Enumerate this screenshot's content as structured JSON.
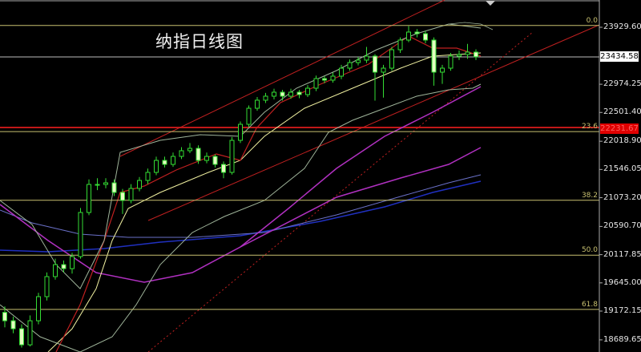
{
  "title": "纳指日线图",
  "chart_data": {
    "type": "candlestick",
    "title": "纳指日线图",
    "ylim": [
      18600,
      24350
    ],
    "y_ticks": [
      "23929.60",
      "22974.25",
      "22501.40",
      "22018.90",
      "21546.05",
      "21073.20",
      "20590.70",
      "20117.85",
      "19645.00",
      "19172.15",
      "18689.65"
    ],
    "current_price": "23434.58",
    "marked_price": "22231.67",
    "fib_levels": [
      {
        "label": "0.0",
        "price": 23960
      },
      {
        "label": "23.6",
        "price": 22180
      },
      {
        "label": "38.2",
        "price": 21030
      },
      {
        "label": "50.0",
        "price": 20110
      },
      {
        "label": "61.8",
        "price": 19200
      }
    ],
    "candles": [
      [
        19150,
        19250,
        18900,
        19010
      ],
      [
        19010,
        19080,
        18800,
        18876
      ],
      [
        18876,
        18950,
        18560,
        18607
      ],
      [
        18607,
        19100,
        18580,
        19010
      ],
      [
        19010,
        19480,
        18950,
        19414
      ],
      [
        19414,
        19820,
        19350,
        19750
      ],
      [
        19750,
        20050,
        19700,
        19951
      ],
      [
        19951,
        20020,
        19820,
        19884
      ],
      [
        19884,
        20150,
        19800,
        20086
      ],
      [
        20086,
        20900,
        20050,
        20825
      ],
      [
        20825,
        21380,
        20780,
        21295
      ],
      [
        21295,
        21400,
        21200,
        21295
      ],
      [
        21295,
        21400,
        21230,
        21322
      ],
      [
        21322,
        21380,
        21100,
        21161
      ],
      [
        21161,
        21220,
        20800,
        21027
      ],
      [
        21027,
        21300,
        20980,
        21228
      ],
      [
        21228,
        21420,
        21180,
        21362
      ],
      [
        21362,
        21560,
        21300,
        21497
      ],
      [
        21497,
        21760,
        21450,
        21698
      ],
      [
        21698,
        21760,
        21580,
        21631
      ],
      [
        21631,
        21830,
        21590,
        21765
      ],
      [
        21765,
        21920,
        21720,
        21860
      ],
      [
        21860,
        21990,
        21820,
        21900
      ],
      [
        21900,
        21950,
        21640,
        21698
      ],
      [
        21698,
        21830,
        21650,
        21765
      ],
      [
        21765,
        21800,
        21580,
        21631
      ],
      [
        21631,
        21680,
        21400,
        21497
      ],
      [
        21497,
        22090,
        21460,
        22034
      ],
      [
        22034,
        22350,
        21990,
        22303
      ],
      [
        22303,
        22620,
        22260,
        22572
      ],
      [
        22572,
        22760,
        22530,
        22707
      ],
      [
        22707,
        22830,
        22660,
        22774
      ],
      [
        22774,
        22900,
        22720,
        22841
      ],
      [
        22841,
        22880,
        22700,
        22774
      ],
      [
        22774,
        22900,
        22730,
        22841
      ],
      [
        22841,
        22880,
        22740,
        22801
      ],
      [
        22801,
        22960,
        22760,
        22908
      ],
      [
        22908,
        23120,
        22860,
        23069
      ],
      [
        23069,
        23110,
        22990,
        23043
      ],
      [
        23043,
        23170,
        23000,
        23110
      ],
      [
        23110,
        23300,
        23060,
        23244
      ],
      [
        23244,
        23390,
        23200,
        23338
      ],
      [
        23338,
        23430,
        23290,
        23379
      ],
      [
        23379,
        23600,
        23330,
        23446
      ],
      [
        23446,
        23480,
        22700,
        23177
      ],
      [
        23177,
        23300,
        22750,
        23244
      ],
      [
        23244,
        23600,
        23200,
        23553
      ],
      [
        23553,
        23760,
        23500,
        23715
      ],
      [
        23715,
        23950,
        23680,
        23849
      ],
      [
        23849,
        23900,
        23760,
        23822
      ],
      [
        23822,
        23870,
        23660,
        23715
      ],
      [
        23715,
        23760,
        22950,
        23177
      ],
      [
        23177,
        23300,
        22980,
        23244
      ],
      [
        23244,
        23500,
        23200,
        23446
      ],
      [
        23446,
        23540,
        23380,
        23473
      ],
      [
        23473,
        23650,
        23400,
        23513
      ],
      [
        23513,
        23560,
        23380,
        23434.58
      ]
    ],
    "colors": {
      "candle": "#33dd33",
      "candle_fill": "#e4ffc0",
      "fib": "#c8c070",
      "channel": "#c02020",
      "ma_purple": "#b030c0",
      "ma_blue": "#2030c0",
      "ma_yellow": "#f0f0a0",
      "bands": "#9fb49a"
    }
  }
}
